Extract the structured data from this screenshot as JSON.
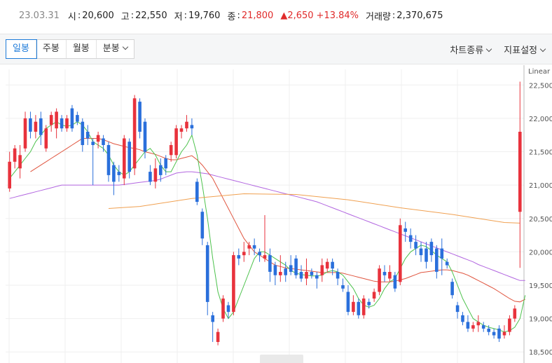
{
  "quote": {
    "date": "23.03.31",
    "open_label": "시",
    "open": "20,600",
    "high_label": "고",
    "high": "22,550",
    "low_label": "저",
    "low": "19,760",
    "close_label": "종",
    "close": "21,800",
    "change": "▲2,650",
    "change_pct": "+13.84%",
    "volume_label": "거래량",
    "volume": "2,370,675"
  },
  "tabs": [
    {
      "label": "일봉",
      "active": true
    },
    {
      "label": "주봉",
      "active": false
    },
    {
      "label": "월봉",
      "active": false
    },
    {
      "label": "분봉",
      "active": false
    }
  ],
  "menu": {
    "chart_type": "차트종류",
    "indicator": "지표설정"
  },
  "colors": {
    "up": "#e8323c",
    "down": "#2a6fdb",
    "ma5": "#4cc24c",
    "ma20": "#e0553f",
    "ma60": "#b266e0",
    "ma120": "#f0a050"
  },
  "chart_data": {
    "type": "candlestick",
    "scale_label": "Linear",
    "y_ticks": [
      "22,500",
      "22,000",
      "21,500",
      "21,000",
      "20,500",
      "20,000",
      "19,500",
      "19,000",
      "18,500"
    ],
    "y_tick_values": [
      22500,
      22000,
      21500,
      21000,
      20500,
      20000,
      19500,
      19000,
      18500
    ],
    "ylim": [
      18450,
      22650
    ],
    "candles": [
      [
        20950,
        21350,
        20900,
        21500
      ],
      [
        21350,
        21550,
        21250,
        21600
      ],
      [
        21250,
        21450,
        21100,
        21600
      ],
      [
        21550,
        22000,
        21500,
        22100
      ],
      [
        22000,
        21800,
        21700,
        22100
      ],
      [
        21800,
        21950,
        21700,
        22050
      ],
      [
        22000,
        21750,
        21600,
        22100
      ],
      [
        21550,
        21850,
        21500,
        21900
      ],
      [
        21900,
        22050,
        21800,
        22100
      ],
      [
        21850,
        22100,
        21700,
        22150
      ],
      [
        22000,
        21850,
        21800,
        22050
      ],
      [
        21850,
        22000,
        21800,
        22050
      ],
      [
        22150,
        21850,
        21800,
        22200
      ],
      [
        22050,
        21950,
        21900,
        22100
      ],
      [
        21950,
        21600,
        21500,
        22000
      ],
      [
        21800,
        21700,
        21600,
        21900
      ],
      [
        21650,
        21600,
        21000,
        21700
      ],
      [
        21650,
        21750,
        21550,
        21800
      ],
      [
        21700,
        21600,
        21500,
        21750
      ],
      [
        21600,
        21150,
        21050,
        21650
      ],
      [
        21300,
        21050,
        20850,
        21350
      ],
      [
        21200,
        21150,
        21050,
        21300
      ],
      [
        21100,
        21700,
        21000,
        21750
      ],
      [
        21650,
        21200,
        21100,
        21700
      ],
      [
        21250,
        22300,
        21150,
        22350
      ],
      [
        22250,
        21800,
        21700,
        22300
      ],
      [
        21950,
        21500,
        21400,
        22000
      ],
      [
        21200,
        21050,
        21000,
        21300
      ],
      [
        21050,
        21250,
        20950,
        21400
      ],
      [
        21300,
        21150,
        21050,
        21400
      ],
      [
        21400,
        21250,
        21150,
        21450
      ],
      [
        21450,
        21600,
        21350,
        21650
      ],
      [
        21450,
        21850,
        21400,
        21900
      ],
      [
        21800,
        21850,
        21700,
        21900
      ],
      [
        21850,
        21950,
        21800,
        22050
      ],
      [
        21900,
        21850,
        21750,
        22000
      ],
      [
        21050,
        20750,
        20700,
        21100
      ],
      [
        20600,
        20200,
        20100,
        20650
      ],
      [
        20100,
        19250,
        19050,
        20150
      ],
      [
        19050,
        18950,
        18650,
        19100
      ],
      [
        18650,
        18800,
        18600,
        18850
      ],
      [
        19000,
        19300,
        18950,
        19350
      ],
      [
        19200,
        19100,
        19000,
        19250
      ],
      [
        19100,
        19950,
        19050,
        20000
      ],
      [
        19950,
        19900,
        19800,
        20050
      ],
      [
        19950,
        20000,
        19850,
        20150
      ],
      [
        20050,
        20100,
        19950,
        20150
      ],
      [
        20100,
        20050,
        19950,
        20200
      ],
      [
        20000,
        19950,
        19850,
        20050
      ],
      [
        19900,
        19950,
        19850,
        20550
      ],
      [
        19950,
        19700,
        19550,
        20050
      ],
      [
        19800,
        19650,
        19500,
        19850
      ],
      [
        19650,
        19700,
        19550,
        19950
      ],
      [
        19750,
        19650,
        19550,
        19850
      ],
      [
        19800,
        19700,
        19650,
        19950
      ],
      [
        19900,
        19650,
        19600,
        19950
      ],
      [
        19700,
        19600,
        19550,
        19800
      ],
      [
        19600,
        19700,
        19500,
        19900
      ],
      [
        19700,
        19650,
        19600,
        19750
      ],
      [
        19650,
        19600,
        19450,
        19700
      ],
      [
        19650,
        19800,
        19550,
        19900
      ],
      [
        19750,
        19850,
        19700,
        19900
      ],
      [
        19850,
        19750,
        19650,
        19900
      ],
      [
        19700,
        19600,
        19500,
        19750
      ],
      [
        19500,
        19450,
        19400,
        19600
      ],
      [
        19400,
        19100,
        19050,
        19500
      ],
      [
        19100,
        19250,
        19050,
        19350
      ],
      [
        19250,
        19050,
        19000,
        19300
      ],
      [
        19050,
        19300,
        19000,
        19350
      ],
      [
        19250,
        19200,
        19150,
        19300
      ],
      [
        19300,
        19400,
        19250,
        19450
      ],
      [
        19400,
        19750,
        19350,
        19800
      ],
      [
        19700,
        19650,
        19550,
        19800
      ],
      [
        19600,
        19700,
        19550,
        19800
      ],
      [
        19650,
        19450,
        19400,
        19700
      ],
      [
        19550,
        20400,
        19500,
        20500
      ],
      [
        20350,
        20300,
        20150,
        20450
      ],
      [
        20250,
        20150,
        20050,
        20350
      ],
      [
        20150,
        20050,
        19950,
        20250
      ],
      [
        20050,
        19950,
        19850,
        20150
      ],
      [
        20050,
        19850,
        19750,
        20150
      ],
      [
        20150,
        19950,
        19850,
        20200
      ],
      [
        20050,
        19700,
        19600,
        20100
      ],
      [
        20050,
        19900,
        19650,
        20200
      ],
      [
        19850,
        19800,
        19750,
        19900
      ],
      [
        19550,
        19350,
        19300,
        19600
      ],
      [
        19200,
        19100,
        19000,
        19250
      ],
      [
        19050,
        18950,
        18900,
        19100
      ],
      [
        18950,
        18850,
        18800,
        19050
      ],
      [
        18850,
        18900,
        18800,
        18950
      ],
      [
        18900,
        18950,
        18800,
        19050
      ],
      [
        18900,
        18850,
        18800,
        18950
      ],
      [
        18850,
        18800,
        18750,
        18900
      ],
      [
        18800,
        18750,
        18700,
        18850
      ],
      [
        18850,
        18700,
        18650,
        18900
      ],
      [
        18750,
        18800,
        18700,
        18900
      ],
      [
        18800,
        19000,
        18750,
        19050
      ],
      [
        19000,
        19150,
        18950,
        19200
      ],
      [
        20600,
        21800,
        19760,
        22550
      ]
    ],
    "ma5": [
      21100,
      21200,
      21300,
      21400,
      21500,
      21650,
      21750,
      21850,
      21900,
      21950,
      21900,
      21880,
      21900,
      21950,
      21900,
      21800,
      21650,
      21600,
      21550,
      21450,
      21300,
      21200,
      21150,
      21200,
      21300,
      21400,
      21500,
      21550,
      21450,
      21300,
      21200,
      21200,
      21350,
      21500,
      21600,
      21750,
      21450,
      21000,
      20500,
      19900,
      19400,
      19150,
      19000,
      19100,
      19300,
      19500,
      19700,
      19900,
      20000,
      20000,
      19950,
      19900,
      19850,
      19800,
      19720,
      19680,
      19660,
      19650,
      19640,
      19640,
      19650,
      19700,
      19720,
      19700,
      19650,
      19550,
      19450,
      19300,
      19200,
      19170,
      19200,
      19300,
      19450,
      19550,
      19600,
      19750,
      19900,
      20000,
      20050,
      20100,
      20080,
      20020,
      19950,
      19900,
      19850,
      19700,
      19500,
      19300,
      19150,
      19000,
      18950,
      18900,
      18870,
      18850,
      18830,
      18800,
      18820,
      18870,
      19000,
      19350
    ],
    "ma20": [
      null,
      null,
      null,
      null,
      21200,
      21250,
      21300,
      21350,
      21400,
      21450,
      21500,
      21550,
      21600,
      21650,
      21700,
      21700,
      21700,
      21700,
      21680,
      21650,
      21620,
      21600,
      21580,
      21560,
      21550,
      21530,
      21500,
      21480,
      21460,
      21430,
      21400,
      21380,
      21380,
      21400,
      21420,
      21440,
      21380,
      21300,
      21200,
      21100,
      20950,
      20800,
      20650,
      20500,
      20350,
      20200,
      20100,
      20000,
      19950,
      19900,
      19850,
      19800,
      19780,
      19760,
      19750,
      19740,
      19730,
      19720,
      19710,
      19700,
      19690,
      19690,
      19690,
      19690,
      19680,
      19660,
      19640,
      19620,
      19600,
      19580,
      19560,
      19550,
      19550,
      19550,
      19560,
      19580,
      19600,
      19630,
      19660,
      19690,
      19700,
      19710,
      19720,
      19730,
      19730,
      19720,
      19700,
      19680,
      19650,
      19610,
      19570,
      19530,
      19490,
      19450,
      19400,
      19350,
      19300,
      19260,
      19250,
      19290
    ],
    "ma60": [
      20800,
      20820,
      20840,
      20860,
      20880,
      20900,
      20920,
      20940,
      20960,
      20980,
      21000,
      21000,
      21000,
      21000,
      21000,
      21000,
      21000,
      21000,
      21000,
      21000,
      21000,
      21000,
      21010,
      21020,
      21030,
      21040,
      21050,
      21060,
      21070,
      21090,
      21120,
      21150,
      21180,
      21190,
      21200,
      21200,
      21190,
      21180,
      21170,
      21150,
      21130,
      21110,
      21090,
      21070,
      21050,
      21030,
      21010,
      20990,
      20970,
      20950,
      20930,
      20910,
      20890,
      20870,
      20850,
      20830,
      20810,
      20790,
      20770,
      20750,
      20720,
      20690,
      20660,
      20630,
      20600,
      20570,
      20540,
      20510,
      20480,
      20450,
      20420,
      20390,
      20360,
      20330,
      20300,
      20270,
      20240,
      20210,
      20180,
      20150,
      20120,
      20090,
      20060,
      20030,
      20000,
      19970,
      19940,
      19910,
      19880,
      19850,
      19810,
      19780,
      19750,
      19720,
      19690,
      19660,
      19630,
      19600,
      19570,
      19570
    ],
    "ma120": [
      null,
      null,
      null,
      null,
      null,
      null,
      null,
      null,
      null,
      null,
      null,
      null,
      null,
      null,
      null,
      null,
      null,
      null,
      null,
      null,
      null,
      null,
      null,
      null,
      null,
      null,
      null,
      null,
      null,
      null,
      null,
      null,
      null,
      null,
      null,
      null,
      null,
      null,
      null,
      null,
      null,
      null,
      null,
      null,
      null,
      null,
      null,
      null,
      null,
      null,
      null,
      null,
      null,
      null,
      null,
      null,
      null,
      null,
      null,
      null,
      null,
      null,
      null,
      null,
      null,
      null,
      null,
      null,
      null,
      null,
      null,
      null,
      null,
      null,
      null,
      null,
      null,
      null,
      null,
      null,
      null,
      null,
      null,
      null,
      null,
      null,
      null,
      null,
      null,
      null,
      null,
      null,
      null,
      null,
      null,
      null,
      null,
      null,
      null,
      null
    ]
  }
}
